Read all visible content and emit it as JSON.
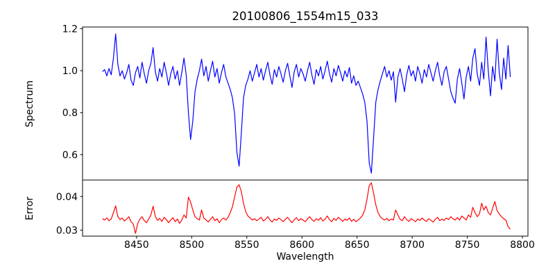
{
  "figure": {
    "background": "#ffffff",
    "spine_color": "#000000"
  },
  "chart_data": {
    "type": "line",
    "title": "20100806_1554m15_033",
    "xlabel": "Wavelength",
    "layout": "two vertically stacked panels sharing the x-axis, height ratio ~2.7:1, no grid, no legend",
    "xlim": [
      8401,
      8805
    ],
    "xticks": [
      8450,
      8500,
      8550,
      8600,
      8650,
      8700,
      8750,
      8800
    ],
    "xtick_labels": [
      "8450",
      "8500",
      "8550",
      "8600",
      "8650",
      "8700",
      "8750",
      "8800"
    ],
    "x": [
      8419,
      8421,
      8423,
      8425,
      8427,
      8429,
      8431,
      8433,
      8435,
      8437,
      8439,
      8441,
      8443,
      8445,
      8447,
      8449,
      8451,
      8453,
      8455,
      8457,
      8459,
      8461,
      8463,
      8465,
      8467,
      8469,
      8471,
      8473,
      8475,
      8477,
      8479,
      8481,
      8483,
      8485,
      8487,
      8489,
      8491,
      8493,
      8495,
      8497,
      8499,
      8501,
      8503,
      8505,
      8507,
      8509,
      8511,
      8513,
      8515,
      8517,
      8519,
      8521,
      8523,
      8525,
      8527,
      8529,
      8531,
      8533,
      8535,
      8537,
      8539,
      8541,
      8543,
      8545,
      8547,
      8549,
      8551,
      8553,
      8555,
      8557,
      8559,
      8561,
      8563,
      8565,
      8567,
      8569,
      8571,
      8573,
      8575,
      8577,
      8579,
      8581,
      8583,
      8585,
      8587,
      8589,
      8591,
      8593,
      8595,
      8597,
      8599,
      8601,
      8603,
      8605,
      8607,
      8609,
      8611,
      8613,
      8615,
      8617,
      8619,
      8621,
      8623,
      8625,
      8627,
      8629,
      8631,
      8633,
      8635,
      8637,
      8639,
      8641,
      8643,
      8645,
      8647,
      8649,
      8651,
      8653,
      8655,
      8657,
      8659,
      8661,
      8663,
      8665,
      8667,
      8669,
      8671,
      8673,
      8675,
      8677,
      8679,
      8681,
      8683,
      8685,
      8687,
      8689,
      8691,
      8693,
      8695,
      8697,
      8699,
      8701,
      8703,
      8705,
      8707,
      8709,
      8711,
      8713,
      8715,
      8717,
      8719,
      8721,
      8723,
      8725,
      8727,
      8729,
      8731,
      8733,
      8735,
      8737,
      8739,
      8741,
      8743,
      8745,
      8747,
      8749,
      8751,
      8753,
      8755,
      8757,
      8759,
      8761,
      8763,
      8765,
      8767,
      8769,
      8771,
      8773,
      8775,
      8777,
      8779,
      8781,
      8783,
      8785,
      8787,
      8789
    ],
    "series": [
      {
        "name": "spectrum",
        "ylabel": "Spectrum",
        "color": "#0000ff",
        "ylim": [
          0.479,
          1.208
        ],
        "yticks": [
          0.6,
          0.8,
          1.0,
          1.2
        ],
        "ytick_labels": [
          "0.6",
          "0.8",
          "1.0",
          "1.2"
        ],
        "features": "normalized continuum ~1.0 with noise; absorption lines at 8498 (depth 0.67), 8542 (depth 0.55), 8662 (depth 0.51); emission-like spikes at 8431 (1.18) and 8465 (1.11); noisier toward red end",
        "values": [
          0.995,
          1.005,
          0.975,
          1.01,
          0.98,
          1.06,
          1.175,
          1.03,
          0.975,
          1.0,
          0.96,
          0.99,
          1.03,
          0.955,
          0.93,
          0.99,
          1.02,
          0.965,
          1.04,
          0.985,
          0.94,
          1.0,
          1.035,
          1.11,
          0.995,
          0.95,
          1.01,
          0.97,
          1.04,
          0.99,
          0.93,
          0.985,
          1.02,
          0.96,
          1.0,
          0.93,
          0.99,
          1.06,
          0.98,
          0.8,
          0.672,
          0.76,
          0.9,
          0.96,
          1.0,
          1.055,
          0.975,
          1.02,
          0.95,
          1.0,
          1.045,
          0.97,
          1.01,
          0.94,
          0.99,
          1.03,
          0.97,
          0.94,
          0.91,
          0.87,
          0.79,
          0.61,
          0.545,
          0.7,
          0.87,
          0.93,
          0.96,
          1.0,
          0.95,
          0.99,
          1.03,
          0.97,
          1.01,
          0.955,
          1.0,
          1.04,
          0.98,
          0.935,
          1.005,
          0.97,
          1.02,
          0.985,
          0.945,
          1.0,
          1.035,
          0.975,
          0.92,
          0.995,
          1.03,
          0.97,
          1.01,
          0.985,
          0.95,
          1.0,
          1.04,
          0.98,
          0.935,
          1.005,
          0.975,
          1.02,
          0.96,
          1.0,
          1.045,
          0.985,
          0.945,
          1.01,
          0.975,
          1.025,
          0.99,
          0.95,
          1.0,
          0.97,
          1.015,
          0.94,
          0.975,
          0.93,
          0.95,
          0.92,
          0.89,
          0.85,
          0.76,
          0.56,
          0.512,
          0.68,
          0.85,
          0.91,
          0.95,
          0.985,
          1.02,
          0.97,
          1.0,
          0.955,
          0.995,
          0.85,
          0.97,
          1.01,
          0.96,
          0.9,
          0.98,
          1.025,
          0.975,
          1.0,
          0.95,
          1.02,
          0.985,
          0.94,
          1.005,
          0.97,
          1.03,
          0.99,
          0.95,
          1.0,
          1.04,
          0.975,
          0.93,
          0.995,
          1.02,
          0.96,
          0.9,
          0.87,
          0.845,
          0.96,
          1.01,
          0.94,
          0.865,
          0.97,
          1.02,
          0.95,
          1.06,
          1.105,
          0.985,
          0.93,
          1.04,
          0.96,
          1.16,
          1.0,
          0.88,
          1.02,
          0.95,
          1.15,
          0.99,
          0.91,
          1.06,
          0.96,
          1.12,
          0.97
        ]
      },
      {
        "name": "error",
        "ylabel": "Error",
        "color": "#ff0000",
        "ylim": [
          0.0282,
          0.0449
        ],
        "yticks": [
          0.03,
          0.04
        ],
        "ytick_labels": [
          "0.03",
          "0.04"
        ],
        "features": "baseline ~0.033 with peaks mirroring the absorption lines: 0.0435 at 8542, 0.0441 at 8662, 0.0398 at 8498; dip to 0.029 near 8449; drops to 0.030 at red end",
        "values": [
          0.0334,
          0.033,
          0.0336,
          0.0328,
          0.0333,
          0.0352,
          0.0372,
          0.034,
          0.0331,
          0.0336,
          0.0327,
          0.0333,
          0.034,
          0.0325,
          0.0318,
          0.029,
          0.032,
          0.0332,
          0.034,
          0.0328,
          0.0322,
          0.0333,
          0.0345,
          0.0371,
          0.034,
          0.0329,
          0.0335,
          0.0326,
          0.0338,
          0.0331,
          0.0322,
          0.033,
          0.0337,
          0.0325,
          0.0333,
          0.032,
          0.033,
          0.0345,
          0.0336,
          0.0398,
          0.0384,
          0.036,
          0.034,
          0.0334,
          0.033,
          0.036,
          0.0336,
          0.033,
          0.0324,
          0.0332,
          0.034,
          0.0328,
          0.0334,
          0.0322,
          0.0331,
          0.0336,
          0.033,
          0.0338,
          0.0352,
          0.037,
          0.04,
          0.0428,
          0.0435,
          0.0415,
          0.038,
          0.0355,
          0.0342,
          0.0336,
          0.033,
          0.0334,
          0.0328,
          0.0333,
          0.0338,
          0.0327,
          0.0332,
          0.034,
          0.033,
          0.0324,
          0.0333,
          0.0329,
          0.0336,
          0.0331,
          0.0325,
          0.0332,
          0.0338,
          0.0329,
          0.0322,
          0.0331,
          0.0337,
          0.0328,
          0.0334,
          0.033,
          0.0325,
          0.0333,
          0.034,
          0.0331,
          0.0326,
          0.0334,
          0.0329,
          0.0337,
          0.0327,
          0.0333,
          0.0342,
          0.0331,
          0.0325,
          0.0335,
          0.0329,
          0.0338,
          0.0332,
          0.0326,
          0.0333,
          0.0329,
          0.0336,
          0.0326,
          0.0332,
          0.0325,
          0.033,
          0.0336,
          0.0344,
          0.036,
          0.0392,
          0.0432,
          0.0441,
          0.041,
          0.0375,
          0.0352,
          0.034,
          0.0334,
          0.033,
          0.0335,
          0.0328,
          0.0333,
          0.033,
          0.036,
          0.0345,
          0.0332,
          0.0328,
          0.034,
          0.0331,
          0.0326,
          0.0334,
          0.033,
          0.0325,
          0.0333,
          0.0329,
          0.0336,
          0.033,
          0.0326,
          0.0334,
          0.0329,
          0.0324,
          0.0332,
          0.0338,
          0.0328,
          0.0333,
          0.0329,
          0.0336,
          0.0331,
          0.034,
          0.0334,
          0.033,
          0.0337,
          0.033,
          0.0342,
          0.0336,
          0.033,
          0.0345,
          0.0338,
          0.0368,
          0.0352,
          0.034,
          0.0348,
          0.038,
          0.036,
          0.0371,
          0.0352,
          0.0345,
          0.0365,
          0.0385,
          0.0358,
          0.0348,
          0.034,
          0.0334,
          0.033,
          0.031,
          0.0303
        ]
      }
    ]
  }
}
